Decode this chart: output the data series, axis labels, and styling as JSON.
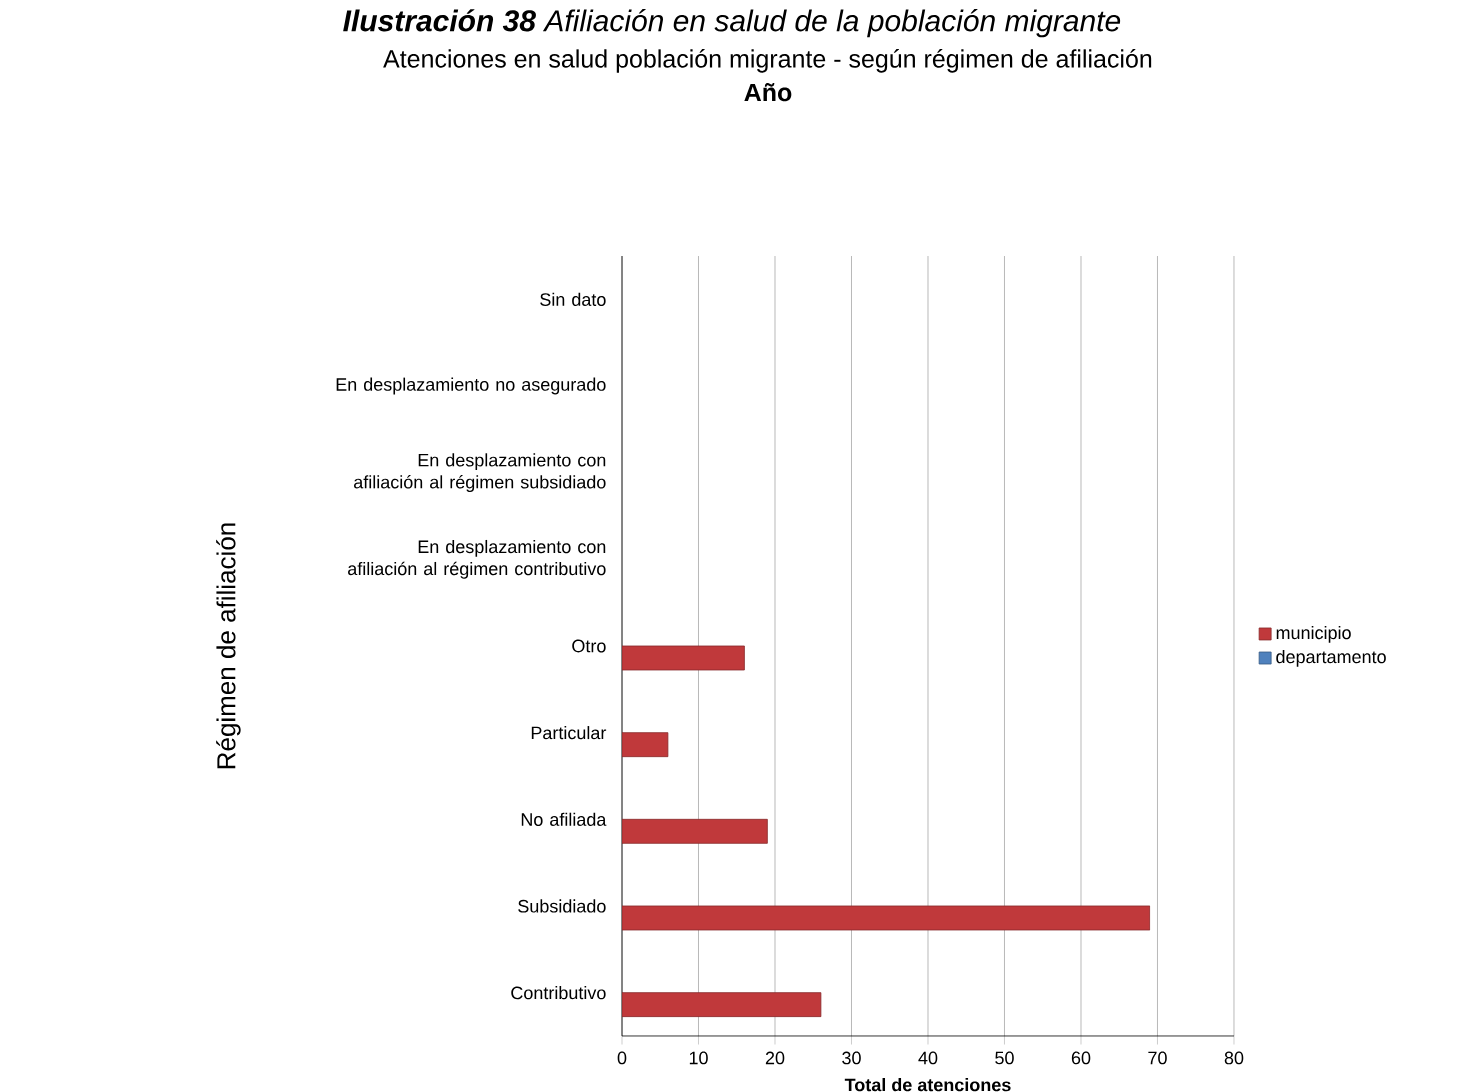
{
  "chart_data": {
    "type": "bar",
    "orientation": "horizontal",
    "title": "**Ilustración 38** Afiliación en salud de la población migrante",
    "subtitle": "Atenciones en salud población migrante - según régimen de afiliación",
    "annotations": [
      "Año"
    ],
    "xlabel": "Total de atenciones",
    "ylabel": "Régimen de afiliación",
    "categories": [
      "Sin dato",
      "En desplazamiento no asegurado",
      "En desplazamiento con afiliación al régimen subsidiado",
      "En desplazamiento con afiliación al régimen contributivo",
      "Otro",
      "Particular",
      "No afiliada",
      "Subsidiado",
      "Contributivo"
    ],
    "series": [
      {
        "name": "municipio",
        "color": "#c0393b",
        "values": [
          null,
          null,
          null,
          null,
          16,
          6,
          19,
          69,
          26
        ]
      },
      {
        "name": "departamento",
        "color": "#4f81bd",
        "values": [
          null,
          null,
          null,
          null,
          null,
          null,
          null,
          null,
          null
        ]
      }
    ],
    "xlim": [
      0,
      80
    ],
    "xticks": [
      0,
      10,
      20,
      30,
      40,
      50,
      60,
      70,
      80
    ],
    "grid": "x",
    "legend": "right"
  }
}
